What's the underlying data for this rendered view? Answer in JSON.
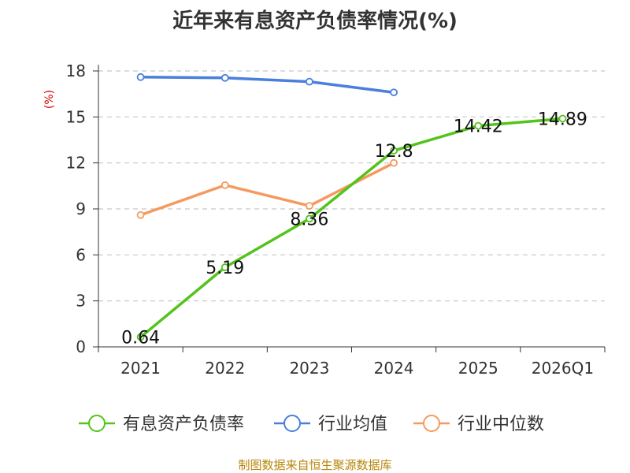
{
  "chart_data": {
    "type": "line",
    "title": "近年来有息资产负债率情况(%)",
    "ylabel": "(%)",
    "xlabel": "",
    "categories": [
      "2021",
      "2022",
      "2023",
      "2024",
      "2025",
      "2026Q1"
    ],
    "ylim": [
      0,
      18
    ],
    "yticks": [
      0,
      3,
      6,
      9,
      12,
      15,
      18
    ],
    "grid": true,
    "legend_position": "bottom",
    "series": [
      {
        "name": "有息资产负债率",
        "color": "#52c41a",
        "values": [
          0.64,
          5.19,
          8.36,
          12.8,
          14.42,
          14.89
        ],
        "labels": [
          "0.64",
          "5.19",
          "8.36",
          "12.8",
          "14.42",
          "14.89"
        ]
      },
      {
        "name": "行业均值",
        "color": "#4a7fdc",
        "values": [
          17.6,
          17.55,
          17.3,
          16.6,
          null,
          null
        ]
      },
      {
        "name": "行业中位数",
        "color": "#f59a5f",
        "values": [
          8.6,
          10.55,
          9.2,
          12.0,
          null,
          null
        ]
      }
    ]
  },
  "source": "制图数据来自恒生聚源数据库"
}
